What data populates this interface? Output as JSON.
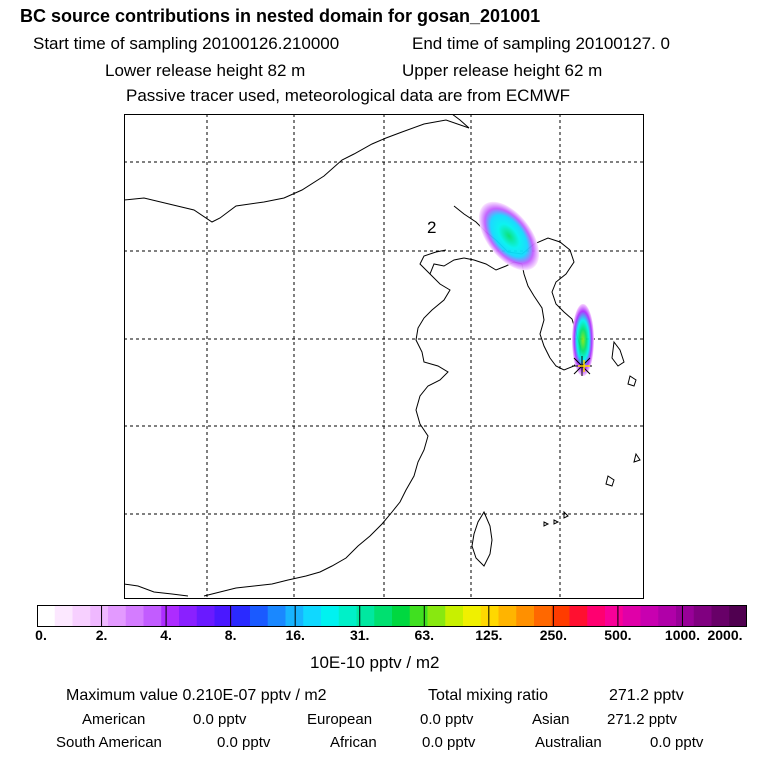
{
  "header": {
    "title": "BC  source contributions in nested domain for gosan_201001",
    "start_label": "Start time of sampling 20100126.210000",
    "end_label": "End time of sampling 20100127.     0",
    "lower_label": "Lower release height   82 m",
    "upper_label": "Upper release height   62 m",
    "note": "Passive tracer used, meteorological data are from ECMWF"
  },
  "map": {
    "label": "2",
    "background": "#ffffff",
    "coastline_color": "#000000",
    "grid_style": "dashed"
  },
  "colorbar": {
    "ticks": [
      "0.",
      "2.",
      "4.",
      "8.",
      "16.",
      "31.",
      "63.",
      "125.",
      "250.",
      "500.",
      "1000.",
      "2000."
    ],
    "colors": [
      "#ffffff",
      "#fce8ff",
      "#f7d0ff",
      "#efb8ff",
      "#e39aff",
      "#d47cff",
      "#c25cff",
      "#ad2cff",
      "#8a20ff",
      "#6a1aff",
      "#4a18ff",
      "#2a2aff",
      "#1a5aff",
      "#1a88ff",
      "#18b4ff",
      "#10d8ff",
      "#00f2f0",
      "#00f0c8",
      "#00e8a0",
      "#00e070",
      "#00d840",
      "#40e020",
      "#88e810",
      "#c8f000",
      "#f0f000",
      "#ffd800",
      "#ffb400",
      "#ff9000",
      "#ff6800",
      "#ff3c00",
      "#ff1030",
      "#ff0070",
      "#f80098",
      "#e000a8",
      "#c800b0",
      "#b000a8",
      "#980098",
      "#800080",
      "#680068",
      "#500050"
    ],
    "unit": "10E-10 pptv / m2"
  },
  "stats": {
    "max_label": "Maximum value  0.210E-07 pptv / m2",
    "total_label": "Total mixing ratio",
    "total_value": "271.2 pptv",
    "sources": [
      {
        "name": "American",
        "value": "0.0 pptv"
      },
      {
        "name": "European",
        "value": "0.0 pptv"
      },
      {
        "name": "Asian",
        "value": "271.2 pptv"
      },
      {
        "name": "South American",
        "value": "0.0 pptv"
      },
      {
        "name": "African",
        "value": "0.0 pptv"
      },
      {
        "name": "Australian",
        "value": "0.0 pptv"
      }
    ]
  }
}
